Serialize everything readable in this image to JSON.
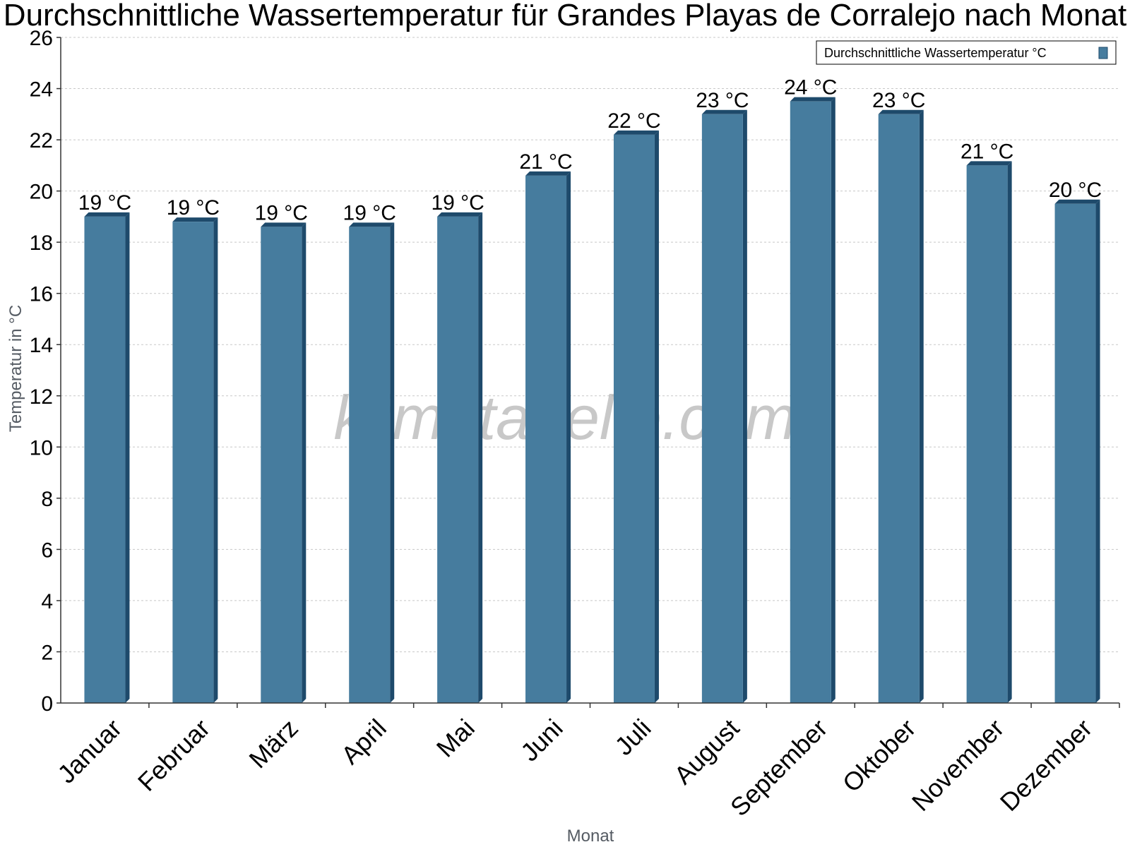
{
  "chart_data": {
    "type": "bar",
    "title": "Durchschnittliche Wassertemperatur für Grandes Playas de Corralejo nach Monat",
    "xlabel": "Monat",
    "ylabel": "Temperatur in °C",
    "ylim": [
      0,
      26
    ],
    "yticks": [
      0,
      2,
      4,
      6,
      8,
      10,
      12,
      14,
      16,
      18,
      20,
      22,
      24,
      26
    ],
    "grid": true,
    "legend_position": "top-right",
    "categories": [
      "Januar",
      "Februar",
      "März",
      "April",
      "Mai",
      "Juni",
      "Juli",
      "August",
      "September",
      "Oktober",
      "November",
      "Dezember"
    ],
    "series": [
      {
        "name": "Durchschnittliche Wassertemperatur °C",
        "values": [
          19.0,
          18.8,
          18.6,
          18.6,
          19.0,
          20.6,
          22.2,
          23.0,
          23.5,
          23.0,
          21.0,
          19.5
        ],
        "data_labels": [
          "19 °C",
          "19 °C",
          "19 °C",
          "19 °C",
          "19 °C",
          "21 °C",
          "22 °C",
          "23 °C",
          "24 °C",
          "23 °C",
          "21 °C",
          "20 °C"
        ]
      }
    ],
    "colors": {
      "bar_face": "#467c9e",
      "bar_side": "#1e4a6b",
      "grid": "#c8c8c8",
      "axis": "#333333"
    }
  },
  "watermark": "klimatabelle.com"
}
